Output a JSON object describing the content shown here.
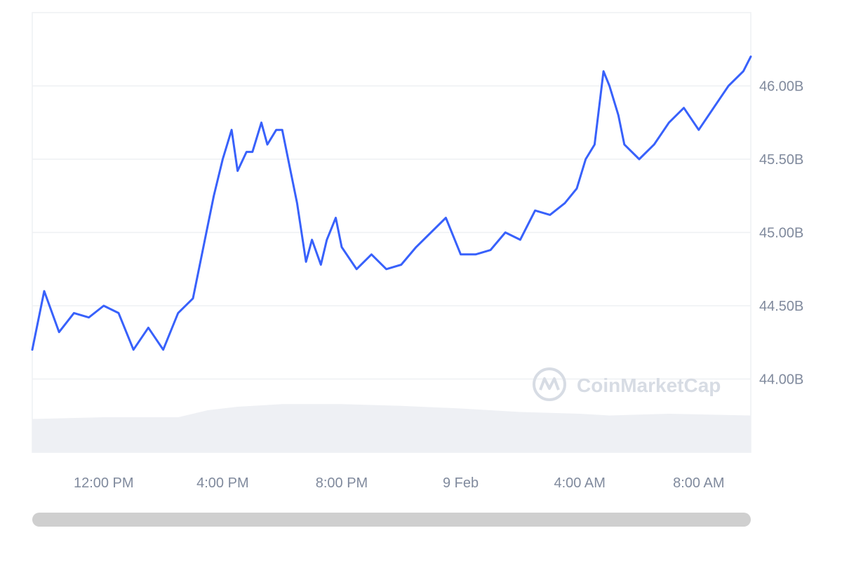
{
  "chart_data": {
    "type": "line",
    "y_ticks": [
      "44.00B",
      "44.50B",
      "45.00B",
      "45.50B",
      "46.00B"
    ],
    "y_tick_values": [
      44.0,
      44.5,
      45.0,
      45.5,
      46.0
    ],
    "ylim": [
      43.5,
      46.5
    ],
    "x_ticks": [
      "12:00 PM",
      "4:00 PM",
      "8:00 PM",
      "9 Feb",
      "4:00 AM",
      "8:00 AM"
    ],
    "x_tick_hours": [
      12,
      16,
      20,
      24,
      28,
      32
    ],
    "xlim_hours": [
      9.6,
      33.75
    ],
    "grid": true,
    "legend": "none",
    "series_color": "#3861fb",
    "watermark": "CoinMarketCap",
    "series": [
      {
        "x": [
          9.6,
          10.0,
          10.5,
          11.0,
          11.5,
          12.0,
          12.5,
          13.0,
          13.5,
          14.0,
          14.5,
          15.0,
          15.5,
          15.7,
          16.0,
          16.3,
          16.5,
          16.8,
          17.0,
          17.3,
          17.5,
          17.8,
          18.0,
          18.3,
          18.5,
          18.8,
          19.0,
          19.3,
          19.5,
          19.8,
          20.0,
          20.5,
          21.0,
          21.5,
          22.0,
          22.5,
          23.0,
          23.5,
          24.0,
          24.5,
          25.0,
          25.5,
          26.0,
          26.5,
          27.0,
          27.5,
          27.9,
          28.2,
          28.5,
          28.8,
          29.0,
          29.3,
          29.5,
          30.0,
          30.5,
          31.0,
          31.5,
          32.0,
          32.5,
          33.0,
          33.5,
          33.75
        ],
        "y": [
          44.2,
          44.6,
          44.32,
          44.45,
          44.42,
          44.5,
          44.45,
          44.2,
          44.35,
          44.2,
          44.45,
          44.55,
          45.05,
          45.25,
          45.5,
          45.7,
          45.42,
          45.55,
          45.55,
          45.75,
          45.6,
          45.7,
          45.7,
          45.4,
          45.2,
          44.8,
          44.95,
          44.78,
          44.95,
          45.1,
          44.9,
          44.75,
          44.85,
          44.75,
          44.78,
          44.9,
          45.0,
          45.1,
          44.85,
          44.85,
          44.88,
          45.0,
          44.95,
          45.15,
          45.12,
          45.2,
          45.3,
          45.5,
          45.6,
          46.1,
          46.0,
          45.8,
          45.6,
          45.5,
          45.6,
          45.75,
          45.85,
          45.7,
          45.85,
          46.0,
          46.1,
          46.2
        ]
      }
    ],
    "volume_band": {
      "x_hours": [
        9.6,
        12.0,
        14.5,
        15.5,
        16.5,
        18.0,
        20.0,
        22.0,
        24.0,
        26.0,
        28.0,
        29.0,
        31.0,
        33.75
      ],
      "levels": [
        0.38,
        0.4,
        0.4,
        0.48,
        0.52,
        0.55,
        0.55,
        0.53,
        0.5,
        0.46,
        0.44,
        0.42,
        0.44,
        0.42
      ]
    }
  }
}
